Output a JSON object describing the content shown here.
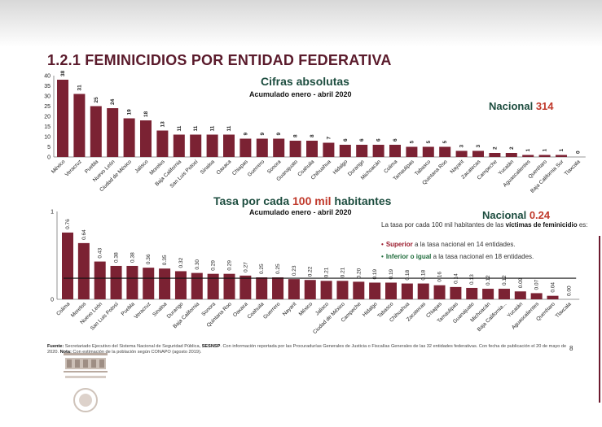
{
  "page": {
    "title": "1.2.1 FEMINICIDIOS POR ENTIDAD FEDERATIVA",
    "page_number": "8",
    "source_label": "Fuente:",
    "source_text": "Secretariado Ejecutivo del Sistema Nacional de Seguridad Pública,",
    "source_bold": "SESNSP",
    "source_rest": ". Con información reportada por las Procuradurías Generales de Justicia o Fiscalías Generales de las 32 entidades federativas. Con fecha de publicación el 20 de mayo de 2020.",
    "note_label": "Nota:",
    "note_text": "Con estimación de la población según CONAPO (agosto 2019)."
  },
  "colors": {
    "bar": "#7b2233",
    "title": "#5a1a2b",
    "heading": "#1d4d3f",
    "accent_red": "#c0392b",
    "green": "#1e6b3a"
  },
  "chart_data": [
    {
      "type": "bar",
      "title": "Cifras absolutas",
      "subtitle": "Acumulado enero - abril 2020",
      "national_label": "Nacional",
      "national_value": "314",
      "ylim": [
        0,
        40
      ],
      "yticks": [
        0,
        5,
        10,
        15,
        20,
        25,
        30,
        35,
        40
      ],
      "categories": [
        "México",
        "Veracruz",
        "Puebla",
        "Nuevo León",
        "Ciudad de México",
        "Jalisco",
        "Morelos",
        "Baja California",
        "San Luis Potosí",
        "Sinaloa",
        "Oaxaca",
        "Chiapas",
        "Guerrero",
        "Sonora",
        "Guanajuato",
        "Coahuila",
        "Chihuahua",
        "Hidalgo",
        "Durango",
        "Michoacán",
        "Colima",
        "Tamaulipas",
        "Tabasco",
        "Quintana Roo",
        "Nayarit",
        "Zacatecas",
        "Campeche",
        "Yucatán",
        "Aguascalientes",
        "Querétaro",
        "Baja California Sur",
        "Tlaxcala"
      ],
      "values": [
        38,
        31,
        25,
        24,
        19,
        18,
        13,
        11,
        11,
        11,
        11,
        9,
        9,
        9,
        8,
        8,
        7,
        6,
        6,
        6,
        6,
        5,
        5,
        5,
        3,
        3,
        2,
        2,
        1,
        1,
        1,
        0
      ],
      "grid": false
    },
    {
      "type": "bar",
      "title_prefix": "Tasa por cada",
      "title_highlight": "100 mil",
      "title_suffix": "habitantes",
      "subtitle": "Acumulado enero - abril 2020",
      "national_label": "Nacional",
      "national_value": "0.24",
      "reference_line": 0.24,
      "ylim": [
        0,
        1
      ],
      "yticks": [
        0,
        1
      ],
      "categories": [
        "Colima",
        "Morelos",
        "Nuevo León",
        "San Luis Potosí",
        "Puebla",
        "Veracruz",
        "Sinaloa",
        "Durango",
        "Baja California",
        "Sonora",
        "Quintana Roo",
        "Oaxaca",
        "Coahuila",
        "Guerrero",
        "Nayarit",
        "México",
        "Jalisco",
        "Ciudad de México",
        "Campeche",
        "Hidalgo",
        "Tabasco",
        "Chihuahua",
        "Zacatecas",
        "Chiapas",
        "Tamaulipas",
        "Guanajuato",
        "Michoacán",
        "Baja California...",
        "Yucatán",
        "Aguascalientes",
        "Querétaro",
        "Tlaxcala"
      ],
      "values": [
        0.76,
        0.64,
        0.43,
        0.38,
        0.38,
        0.36,
        0.35,
        0.32,
        0.3,
        0.29,
        0.29,
        0.27,
        0.25,
        0.25,
        0.23,
        0.22,
        0.21,
        0.21,
        0.2,
        0.19,
        0.19,
        0.18,
        0.18,
        0.16,
        0.14,
        0.13,
        0.12,
        0.12,
        0.09,
        0.07,
        0.04,
        0.0
      ],
      "value_labels": [
        "0.76",
        "0.64",
        "0.43",
        "0.38",
        "0.38",
        "0.36",
        "0.35",
        "0.32",
        "0.30",
        "0.29",
        "0.29",
        "0.27",
        "0.25",
        "0.25",
        "0.23",
        "0.22",
        "0.21",
        "0.21",
        "0.20",
        "0.19",
        "0.19",
        "0.18",
        "0.18",
        "0.16",
        "0.14",
        "0.13",
        "0.12",
        "0.12",
        "0.09",
        "0.07",
        "0.04",
        "0.00"
      ],
      "grid": false
    }
  ],
  "note": {
    "intro": "La tasa por cada 100 mil habitantes de las",
    "intro_bold": "víctimas de feminicidio",
    "intro_end": "es:",
    "bullet1_bold": "Superior",
    "bullet1_text": "a la tasa nacional en 14 entidades.",
    "bullet2_bold": "Inferior o igual",
    "bullet2_text": "a la tasa nacional en 18 entidades."
  }
}
